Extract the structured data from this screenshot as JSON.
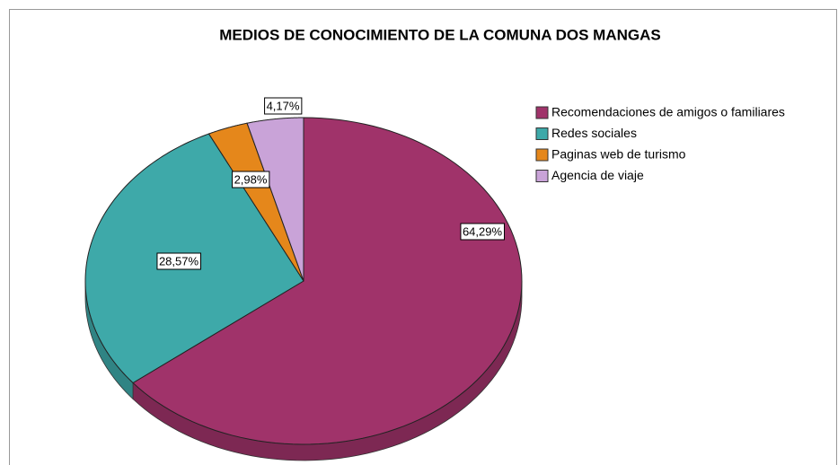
{
  "chart_data": {
    "type": "pie",
    "title": "MEDIOS DE CONOCIMIENTO DE LA COMUNA DOS MANGAS",
    "categories": [
      "Recomendaciones de amigos o familiares",
      "Redes sociales",
      "Paginas web de turismo",
      "Agencia de viaje"
    ],
    "values": [
      64.29,
      28.57,
      2.98,
      4.17
    ],
    "value_labels": [
      "64,29%",
      "28,57%",
      "2,98%",
      "4,17%"
    ],
    "colors": [
      "#a0336a",
      "#3ea9a9",
      "#e5871b",
      "#c9a3d8"
    ]
  }
}
